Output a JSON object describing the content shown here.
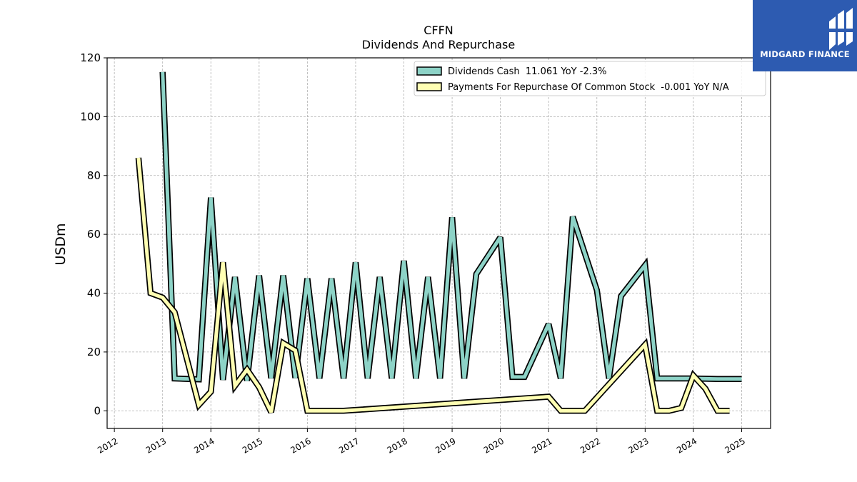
{
  "brand": {
    "name": "MIDGARD FINANCE",
    "bg_color": "#2d5bb1",
    "icon": "midgard-logo-icon"
  },
  "chart_data": {
    "type": "line",
    "title": "CFFN",
    "subtitle": "Dividends And Repurchase",
    "xlabel": "",
    "ylabel": "USDm",
    "xlim": [
      2011.85,
      2025.6
    ],
    "ylim": [
      -6,
      120
    ],
    "yticks": [
      0,
      20,
      40,
      60,
      80,
      100,
      120
    ],
    "xticks": [
      2012,
      2013,
      2014,
      2015,
      2016,
      2017,
      2018,
      2019,
      2020,
      2021,
      2022,
      2023,
      2024,
      2025
    ],
    "xtick_labels": [
      "2012",
      "2013",
      "2014",
      "2015",
      "2016",
      "2017",
      "2018",
      "2019",
      "2020",
      "2021",
      "2022",
      "2023",
      "2024",
      "2025"
    ],
    "grid": true,
    "legend_position": "top-right",
    "series": [
      {
        "name": "Dividends Cash",
        "legend_label": "Dividends Cash  11.061 YoY -2.3%",
        "color": "#8dd3c7",
        "points": [
          [
            2013.0,
            115.2
          ],
          [
            2013.25,
            11.0
          ],
          [
            2013.75,
            10.7
          ],
          [
            2014.0,
            72.5
          ],
          [
            2014.25,
            10.5
          ],
          [
            2014.5,
            45.5
          ],
          [
            2014.75,
            10.2
          ],
          [
            2015.0,
            46.0
          ],
          [
            2015.25,
            11.1
          ],
          [
            2015.5,
            46.0
          ],
          [
            2015.75,
            11.2
          ],
          [
            2016.0,
            45.0
          ],
          [
            2016.25,
            11.0
          ],
          [
            2016.5,
            45.0
          ],
          [
            2016.75,
            11.0
          ],
          [
            2017.0,
            50.5
          ],
          [
            2017.25,
            11.0
          ],
          [
            2017.5,
            45.5
          ],
          [
            2017.75,
            11.0
          ],
          [
            2018.0,
            51.0
          ],
          [
            2018.25,
            11.0
          ],
          [
            2018.5,
            45.5
          ],
          [
            2018.75,
            11.0
          ],
          [
            2019.0,
            65.8
          ],
          [
            2019.25,
            11.0
          ],
          [
            2019.5,
            46.5
          ],
          [
            2020.0,
            59.0
          ],
          [
            2020.25,
            11.5
          ],
          [
            2020.5,
            11.5
          ],
          [
            2021.0,
            29.5
          ],
          [
            2021.25,
            11.0
          ],
          [
            2021.5,
            66.0
          ],
          [
            2022.0,
            41.0
          ],
          [
            2022.25,
            11.0
          ],
          [
            2022.5,
            39.0
          ],
          [
            2023.0,
            49.5
          ],
          [
            2023.25,
            11.0
          ],
          [
            2023.75,
            11.0
          ],
          [
            2024.0,
            11.0
          ],
          [
            2024.5,
            10.8
          ],
          [
            2025.0,
            10.8
          ]
        ]
      },
      {
        "name": "Payments For Repurchase Of Common Stock",
        "legend_label": "Payments For Repurchase Of Common Stock  -0.001 YoY N/A",
        "color": "#ffffb3",
        "points": [
          [
            2012.5,
            86.0
          ],
          [
            2012.75,
            40.0
          ],
          [
            2013.0,
            38.5
          ],
          [
            2013.25,
            33.5
          ],
          [
            2013.75,
            2.0
          ],
          [
            2014.0,
            6.5
          ],
          [
            2014.25,
            50.5
          ],
          [
            2014.5,
            8.5
          ],
          [
            2014.75,
            14.0
          ],
          [
            2015.0,
            8.0
          ],
          [
            2015.25,
            -0.5
          ],
          [
            2015.5,
            23.0
          ],
          [
            2015.75,
            20.5
          ],
          [
            2016.0,
            0.0
          ],
          [
            2016.75,
            0.0
          ],
          [
            2021.0,
            4.8
          ],
          [
            2021.25,
            0.0
          ],
          [
            2021.75,
            0.0
          ],
          [
            2023.0,
            22.5
          ],
          [
            2023.25,
            0.0
          ],
          [
            2023.5,
            0.0
          ],
          [
            2023.75,
            1.0
          ],
          [
            2024.0,
            12.0
          ],
          [
            2024.25,
            7.5
          ],
          [
            2024.5,
            0.0
          ],
          [
            2024.75,
            0.0
          ]
        ]
      }
    ]
  }
}
